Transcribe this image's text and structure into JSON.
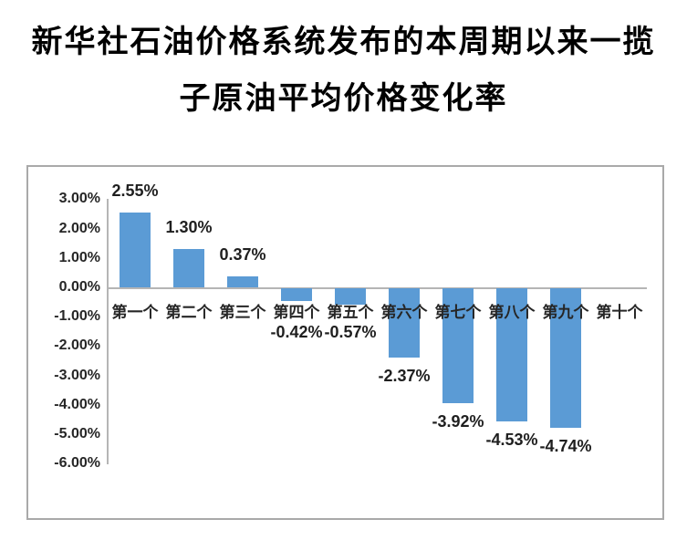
{
  "title": {
    "line1": "新华社石油价格系统发布的本周期以来一揽",
    "line2": "子原油平均价格变化率"
  },
  "chart_data": {
    "type": "bar",
    "title": "新华社石油价格系统发布的本周期以来一揽子原油平均价格变化率",
    "categories": [
      "第一个",
      "第二个",
      "第三个",
      "第四个",
      "第五个",
      "第六个",
      "第七个",
      "第八个",
      "第九个",
      "第十个"
    ],
    "values": [
      2.55,
      1.3,
      0.37,
      -0.42,
      -0.57,
      -2.37,
      -3.92,
      -4.53,
      -4.74,
      null
    ],
    "data_labels": [
      "2.55%",
      "1.30%",
      "0.37%",
      "-0.42%",
      "-0.57%",
      "-2.37%",
      "-3.92%",
      "-4.53%",
      "-4.74%",
      ""
    ],
    "y_ticks": [
      {
        "label": "3.00%",
        "value": 3
      },
      {
        "label": "2.00%",
        "value": 2
      },
      {
        "label": "1.00%",
        "value": 1
      },
      {
        "label": "0.00%",
        "value": 0
      },
      {
        "label": "-1.00%",
        "value": -1
      },
      {
        "label": "-2.00%",
        "value": -2
      },
      {
        "label": "-3.00%",
        "value": -3
      },
      {
        "label": "-4.00%",
        "value": -4
      },
      {
        "label": "-5.00%",
        "value": -5
      },
      {
        "label": "-6.00%",
        "value": -6
      }
    ],
    "ylim": [
      -6,
      3
    ],
    "xlabel": "",
    "ylabel": "",
    "grid": false,
    "legend": false,
    "colors": {
      "bar": "#5B9BD5",
      "label_text": "#262626",
      "axis_line": "#b5b5b5",
      "frame_border": "#a9a9a9",
      "title_text": "#000000"
    }
  }
}
